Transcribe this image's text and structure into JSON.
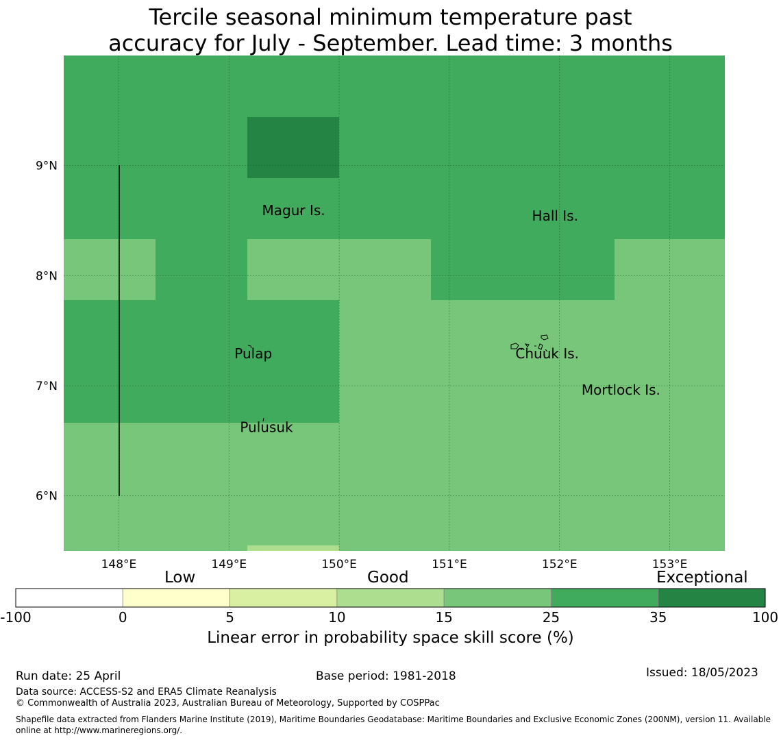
{
  "title_line1": "Tercile seasonal minimum temperature past",
  "title_line2": "accuracy for July - September. Lead time: 3 months",
  "colors": {
    "white": "#ffffff",
    "yellow": "#ffffcc",
    "pale_green": "#d9f0a3",
    "light_green": "#addd8e",
    "mid_green": "#78c679",
    "green": "#41ab5d",
    "dark_green": "#238443"
  },
  "map": {
    "lon_ticks": [
      "148°E",
      "149°E",
      "150°E",
      "151°E",
      "152°E",
      "153°E"
    ],
    "lat_ticks": [
      "9°N",
      "8°N",
      "7°N",
      "6°N"
    ],
    "lon_values": [
      148,
      149,
      150,
      151,
      152,
      153
    ],
    "lat_values": [
      9,
      8,
      7,
      6
    ],
    "lon_range": [
      147.5,
      153.5
    ],
    "lat_range": [
      5.5,
      10.0
    ],
    "place_labels": [
      {
        "name": "Magur Is.",
        "lon": 149.3,
        "lat": 8.55
      },
      {
        "name": "Hall Is.",
        "lon": 151.75,
        "lat": 8.5
      },
      {
        "name": "Pulap",
        "lon": 149.05,
        "lat": 7.25
      },
      {
        "name": "Chuuk Is.",
        "lon": 151.6,
        "lat": 7.25
      },
      {
        "name": "Mortlock Is.",
        "lon": 152.2,
        "lat": 6.92
      },
      {
        "name": "Pulusuk",
        "lon": 149.1,
        "lat": 6.58
      }
    ]
  },
  "legend": {
    "categories": [
      "Low",
      "Good",
      "Exceptional"
    ],
    "boundaries": [
      "-100",
      "0",
      "5",
      "10",
      "15",
      "25",
      "35",
      "100"
    ],
    "colors": [
      "#ffffff",
      "#ffffcc",
      "#d9f0a3",
      "#addd8e",
      "#78c679",
      "#41ab5d",
      "#238443"
    ],
    "title": "Linear error in probability space skill score (%)"
  },
  "footer": {
    "run_date": "Run date: 25 April",
    "base_period": "Base period: 1981-2018",
    "issued": "Issued: 18/05/2023",
    "data_source": "Data source: ACCESS-S2 and ERA5 Climate Reanalysis",
    "copyright": "© Commonwealth of Australia 2023, Australian Bureau of Meteorology, Supported by COSPPac",
    "shapefile_line1": "Shapefile data extracted from Flanders Marine Institute (2019), Maritime Boundaries Geodatabase: Maritime Boundaries and Exclusive Economic Zones (200NM), version 11. Available",
    "shapefile_line2": "online at http://www.marineregions.org/."
  }
}
